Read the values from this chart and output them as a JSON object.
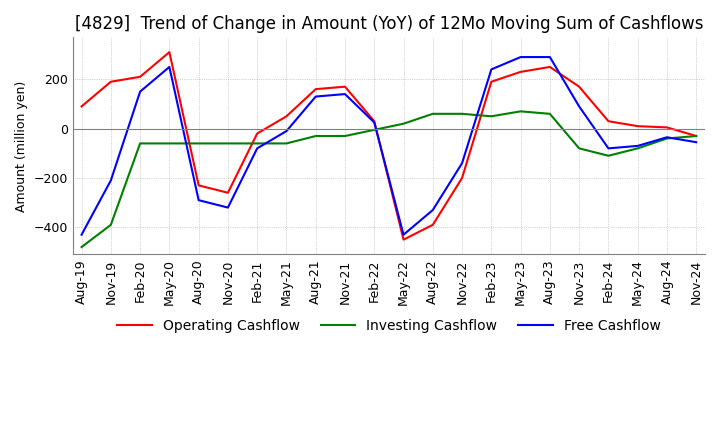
{
  "title": "[4829]  Trend of Change in Amount (YoY) of 12Mo Moving Sum of Cashflows",
  "ylabel": "Amount (million yen)",
  "xlabels": [
    "Aug-19",
    "Nov-19",
    "Feb-20",
    "May-20",
    "Aug-20",
    "Nov-20",
    "Feb-21",
    "May-21",
    "Aug-21",
    "Nov-21",
    "Feb-22",
    "May-22",
    "Aug-22",
    "Nov-22",
    "Feb-23",
    "May-23",
    "Aug-23",
    "Nov-23",
    "Feb-24",
    "May-24",
    "Aug-24",
    "Nov-24"
  ],
  "operating": [
    90,
    190,
    210,
    310,
    -230,
    -260,
    -20,
    50,
    160,
    170,
    30,
    -450,
    -390,
    -200,
    190,
    230,
    250,
    170,
    30,
    10,
    5,
    -30
  ],
  "investing": [
    -480,
    -390,
    -60,
    -60,
    -60,
    -60,
    -60,
    -60,
    -30,
    -30,
    -5,
    20,
    60,
    60,
    50,
    70,
    60,
    -80,
    -110,
    -80,
    -40,
    -30
  ],
  "free": [
    -430,
    -210,
    150,
    250,
    -290,
    -320,
    -80,
    -10,
    130,
    140,
    25,
    -430,
    -330,
    -140,
    240,
    290,
    290,
    90,
    -80,
    -70,
    -35,
    -55
  ],
  "ylim": [
    -510,
    370
  ],
  "yticks": [
    -400,
    -200,
    0,
    200
  ],
  "operating_color": "#ff0000",
  "investing_color": "#008000",
  "free_color": "#0000ff",
  "background_color": "#ffffff",
  "grid_color": "#aaaaaa",
  "title_fontsize": 12,
  "axis_fontsize": 9,
  "legend_fontsize": 10
}
